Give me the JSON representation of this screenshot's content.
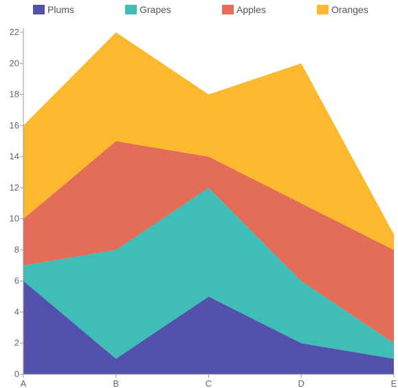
{
  "chart_data": {
    "type": "area",
    "stacked": true,
    "title": "",
    "xlabel": "",
    "ylabel": "",
    "categories": [
      "A",
      "B",
      "C",
      "D",
      "E"
    ],
    "ylim": [
      0,
      22
    ],
    "yticks": [
      0,
      2,
      4,
      6,
      8,
      10,
      12,
      14,
      16,
      18,
      20,
      22
    ],
    "legend_position": "top",
    "grid": false,
    "series": [
      {
        "name": "Plums",
        "color": "#5252ad",
        "values": [
          6,
          1,
          5,
          2,
          1
        ]
      },
      {
        "name": "Grapes",
        "color": "#3fbdb6",
        "values": [
          1,
          7,
          7,
          4,
          1
        ]
      },
      {
        "name": "Apples",
        "color": "#e36d57",
        "values": [
          3,
          7,
          2,
          5,
          6
        ]
      },
      {
        "name": "Oranges",
        "color": "#fdb92e",
        "values": [
          6,
          7,
          4,
          9,
          1
        ]
      }
    ]
  }
}
